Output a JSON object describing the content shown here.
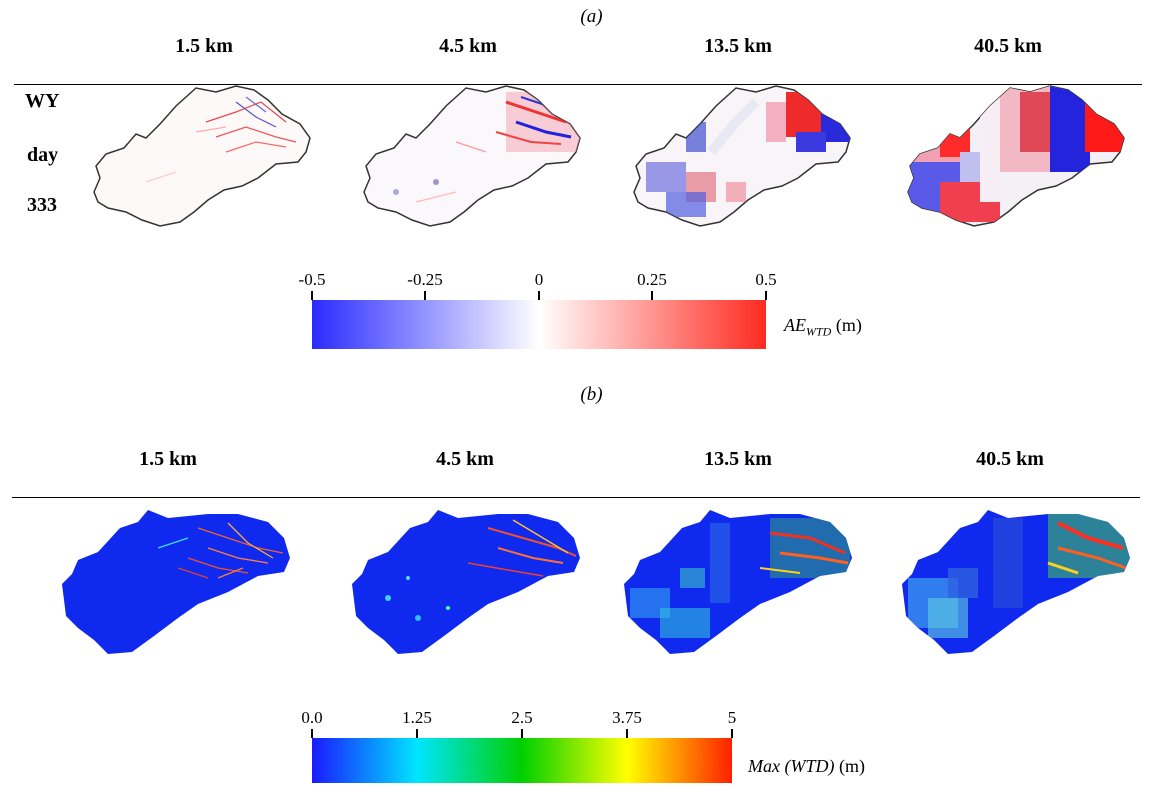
{
  "panel_a": {
    "label": "(a)",
    "columns": [
      "1.5 km",
      "4.5 km",
      "13.5 km",
      "40.5 km"
    ],
    "row_label_lines": [
      "WY",
      "day",
      "333"
    ],
    "colorbar": {
      "ticks": [
        "-0.5",
        "-0.25",
        "0",
        "0.25",
        "0.5"
      ],
      "title_main": "AE",
      "title_sub": "WTD",
      "title_unit": "(m)",
      "colors": [
        "#2a2bff",
        "#ffffff",
        "#ff2a20"
      ]
    }
  },
  "panel_b": {
    "label": "(b)",
    "columns": [
      "1.5 km",
      "4.5 km",
      "13.5 km",
      "40.5 km"
    ],
    "colorbar": {
      "ticks": [
        "0.0",
        "1.25",
        "2.5",
        "3.75",
        "5"
      ],
      "title_main": "Max (WTD)",
      "title_unit": "(m)",
      "colors": [
        "#1a1aff",
        "#00e5ff",
        "#00d000",
        "#ffff00",
        "#ff2000"
      ]
    }
  },
  "colors": {
    "map_background_blue": "#1029ee",
    "outline": "#333333"
  }
}
